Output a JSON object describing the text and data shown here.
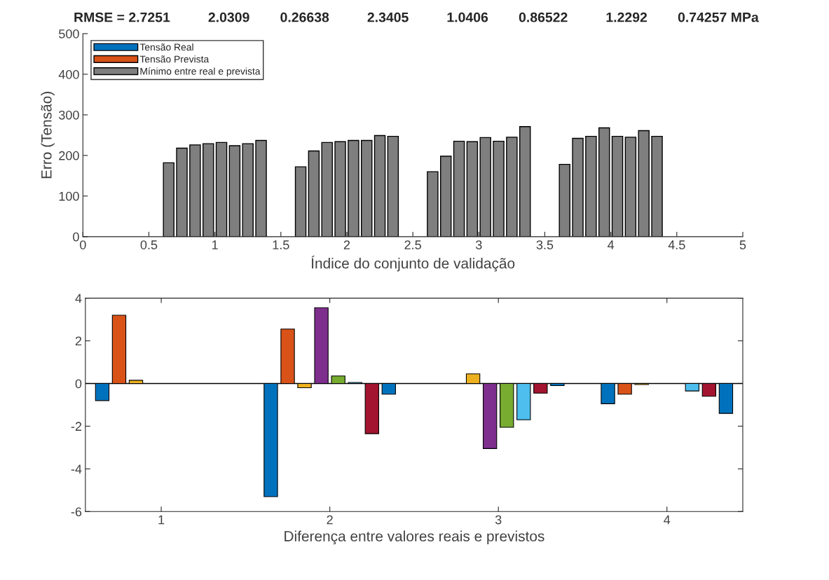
{
  "chart_data": [
    {
      "type": "bar",
      "title": "RMSE = 2.7251          2.0309        0.26638          2.3405          1.0406        0.86522          1.2292        0.74257 MPa",
      "xlabel": "Índice do conjunto de validação",
      "ylabel": "Erro (Tensão)",
      "xlim": [
        0,
        5
      ],
      "xticks": [
        0,
        0.5,
        1,
        1.5,
        2,
        2.5,
        3,
        3.5,
        4,
        4.5,
        5
      ],
      "ylim": [
        0,
        500
      ],
      "yticks": [
        0,
        100,
        200,
        300,
        400,
        500
      ],
      "legend": "top left",
      "grid": false,
      "series": [
        {
          "name": "Tensão Real",
          "color": "#0072bd"
        },
        {
          "name": "Tensão Prevista",
          "color": "#d95319"
        },
        {
          "name": "Mínimo entre real e prevista",
          "color": "#7f7f7f",
          "x": [
            0.65,
            0.75,
            0.85,
            0.95,
            1.05,
            1.15,
            1.25,
            1.35,
            1.65,
            1.75,
            1.85,
            1.95,
            2.05,
            2.15,
            2.25,
            2.35,
            2.65,
            2.75,
            2.85,
            2.95,
            3.05,
            3.15,
            3.25,
            3.35,
            3.65,
            3.75,
            3.85,
            3.95,
            4.05,
            4.15,
            4.25,
            4.35
          ],
          "values": [
            182,
            218,
            226,
            229,
            232,
            224,
            229,
            237,
            172,
            211,
            232,
            234,
            237,
            237,
            249,
            247,
            160,
            198,
            235,
            234,
            244,
            235,
            245,
            271,
            178,
            242,
            247,
            268,
            247,
            245,
            261,
            247
          ]
        }
      ]
    },
    {
      "type": "bar",
      "xlabel": "Diferença entre valores reais e previstos",
      "categories": [
        "1",
        "2",
        "3",
        "4"
      ],
      "ylim": [
        -6,
        4
      ],
      "yticks": [
        -6,
        -4,
        -2,
        0,
        2,
        4
      ],
      "legend": false,
      "grid": false,
      "ref_lines": [
        {
          "axis": "y",
          "value": 0,
          "color": "#000000"
        }
      ],
      "series": [
        {
          "color": "#0072bd",
          "values": [
            -0.8,
            -5.3,
            null,
            -0.95
          ]
        },
        {
          "color": "#d95319",
          "values": [
            3.2,
            2.55,
            null,
            -0.5
          ]
        },
        {
          "color": "#edb120",
          "values": [
            0.15,
            -0.2,
            0.45,
            -0.05
          ]
        },
        {
          "color": "#7e2f8e",
          "values": [
            null,
            3.55,
            -3.05,
            null
          ]
        },
        {
          "color": "#77ac30",
          "values": [
            null,
            0.35,
            -2.05,
            null
          ]
        },
        {
          "color": "#4dbeee",
          "values": [
            null,
            0.05,
            -1.7,
            -0.35
          ]
        },
        {
          "color": "#a2142f",
          "values": [
            null,
            -2.35,
            -0.45,
            -0.6
          ]
        },
        {
          "color": "#0072bd",
          "values": [
            null,
            -0.5,
            -0.1,
            -1.4
          ]
        }
      ]
    }
  ]
}
